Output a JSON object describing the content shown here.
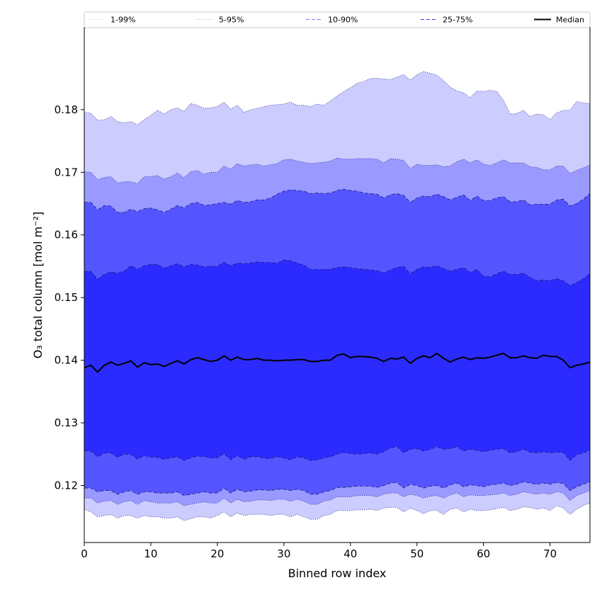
{
  "chart_data": {
    "type": "area",
    "title": "",
    "xlabel": "Binned row index",
    "ylabel": "O₃ total column [mol m⁻²]",
    "xlim": [
      0,
      76
    ],
    "ylim": [
      0.1109,
      0.1931
    ],
    "x_ticks": [
      0,
      10,
      20,
      30,
      40,
      50,
      60,
      70
    ],
    "y_ticks": [
      0.12,
      0.13,
      0.14,
      0.15,
      0.16,
      0.17,
      0.18
    ],
    "x_tick_labels": [
      "0",
      "10",
      "20",
      "30",
      "40",
      "50",
      "60",
      "70"
    ],
    "y_tick_labels": [
      "0.12",
      "0.13",
      "0.14",
      "0.15",
      "0.16",
      "0.17",
      "0.18"
    ],
    "grid": false,
    "legend_position": "top, spanning full width in one row",
    "x": [
      0,
      1,
      2,
      3,
      4,
      5,
      6,
      7,
      8,
      9,
      10,
      11,
      12,
      13,
      14,
      15,
      16,
      17,
      18,
      19,
      20,
      21,
      22,
      23,
      24,
      25,
      26,
      27,
      28,
      29,
      30,
      31,
      32,
      33,
      34,
      35,
      36,
      37,
      38,
      39,
      40,
      41,
      42,
      43,
      44,
      45,
      46,
      47,
      48,
      49,
      50,
      51,
      52,
      53,
      54,
      55,
      56,
      57,
      58,
      59,
      60,
      61,
      62,
      63,
      64,
      65,
      66,
      67,
      68,
      69,
      70,
      71,
      72,
      73,
      74,
      75,
      76
    ],
    "bands": [
      {
        "name": "1-99%",
        "color": "#ccccff",
        "line_style": "dotted",
        "lower": [
          0.1162,
          0.1158,
          0.115,
          0.1152,
          0.1154,
          0.1148,
          0.1152,
          0.1152,
          0.1148,
          0.1152,
          0.115,
          0.115,
          0.1148,
          0.1148,
          0.115,
          0.1144,
          0.1147,
          0.115,
          0.115,
          0.1148,
          0.1152,
          0.1158,
          0.115,
          0.1156,
          0.1152,
          0.1154,
          0.1154,
          0.1154,
          0.1152,
          0.1154,
          0.1154,
          0.115,
          0.1154,
          0.115,
          0.1146,
          0.1146,
          0.1152,
          0.1154,
          0.116,
          0.116,
          0.116,
          0.1161,
          0.1161,
          0.1162,
          0.116,
          0.1164,
          0.1165,
          0.1165,
          0.1158,
          0.1164,
          0.116,
          0.1155,
          0.116,
          0.116,
          0.1154,
          0.1162,
          0.1164,
          0.1158,
          0.1162,
          0.116,
          0.116,
          0.1161,
          0.1163,
          0.1165,
          0.116,
          0.1162,
          0.1166,
          0.1165,
          0.1162,
          0.1164,
          0.116,
          0.1168,
          0.1164,
          0.1154,
          0.1162,
          0.1168,
          0.1172
        ],
        "upper": [
          0.1796,
          0.1794,
          0.1783,
          0.1784,
          0.1789,
          0.1781,
          0.1779,
          0.1781,
          0.1776,
          0.1784,
          0.1791,
          0.1799,
          0.1793,
          0.18,
          0.1803,
          0.1797,
          0.181,
          0.1807,
          0.1802,
          0.1803,
          0.1805,
          0.1812,
          0.1801,
          0.1807,
          0.1796,
          0.18,
          0.1802,
          0.1805,
          0.1807,
          0.1808,
          0.1809,
          0.1812,
          0.1807,
          0.1807,
          0.1805,
          0.1809,
          0.1807,
          0.1814,
          0.1822,
          0.1829,
          0.1835,
          0.1842,
          0.1845,
          0.185,
          0.185,
          0.1849,
          0.1848,
          0.1852,
          0.1856,
          0.1847,
          0.1856,
          0.1861,
          0.1858,
          0.1855,
          0.1846,
          0.1836,
          0.183,
          0.1827,
          0.1819,
          0.183,
          0.1829,
          0.1831,
          0.1829,
          0.1815,
          0.1793,
          0.1794,
          0.1799,
          0.1789,
          0.1793,
          0.1792,
          0.1784,
          0.1795,
          0.1799,
          0.1799,
          0.1813,
          0.1811,
          0.181
        ]
      },
      {
        "name": "5-95%",
        "color": "#9999ff",
        "line_style": "dotted",
        "lower": [
          0.118,
          0.118,
          0.1172,
          0.1175,
          0.1176,
          0.117,
          0.1174,
          0.1176,
          0.117,
          0.1176,
          0.1174,
          0.1172,
          0.1172,
          0.1172,
          0.1174,
          0.1168,
          0.117,
          0.1172,
          0.1174,
          0.1172,
          0.1172,
          0.118,
          0.1172,
          0.1178,
          0.1174,
          0.1175,
          0.1177,
          0.1177,
          0.1176,
          0.1178,
          0.1178,
          0.1175,
          0.1178,
          0.1175,
          0.117,
          0.117,
          0.1175,
          0.1177,
          0.1182,
          0.1182,
          0.1182,
          0.1184,
          0.1184,
          0.1184,
          0.1182,
          0.1186,
          0.1188,
          0.1188,
          0.1182,
          0.1186,
          0.1184,
          0.118,
          0.1183,
          0.1184,
          0.118,
          0.1185,
          0.1188,
          0.1182,
          0.1185,
          0.1184,
          0.1184,
          0.1185,
          0.1186,
          0.1188,
          0.1184,
          0.1186,
          0.119,
          0.1188,
          0.1186,
          0.1188,
          0.1186,
          0.119,
          0.1188,
          0.1176,
          0.1184,
          0.1188,
          0.1192
        ],
        "upper": [
          0.1701,
          0.17,
          0.1688,
          0.1692,
          0.1693,
          0.1683,
          0.1685,
          0.1685,
          0.1682,
          0.1693,
          0.1693,
          0.1695,
          0.1689,
          0.1693,
          0.1699,
          0.1691,
          0.1701,
          0.1703,
          0.1697,
          0.17,
          0.17,
          0.171,
          0.1705,
          0.1714,
          0.171,
          0.1712,
          0.1713,
          0.171,
          0.1712,
          0.1714,
          0.172,
          0.1721,
          0.1718,
          0.1716,
          0.1714,
          0.1715,
          0.1716,
          0.1718,
          0.1723,
          0.1721,
          0.1721,
          0.1722,
          0.1722,
          0.1722,
          0.1721,
          0.1715,
          0.1722,
          0.1721,
          0.1719,
          0.1706,
          0.1713,
          0.1711,
          0.1711,
          0.1712,
          0.1709,
          0.171,
          0.1717,
          0.1721,
          0.1715,
          0.172,
          0.1713,
          0.1711,
          0.1715,
          0.172,
          0.1715,
          0.1715,
          0.1715,
          0.1709,
          0.1708,
          0.1704,
          0.1704,
          0.171,
          0.171,
          0.1698,
          0.1703,
          0.1707,
          0.1712
        ]
      },
      {
        "name": "10-90%",
        "color": "#5555ff",
        "line_style": "dashed",
        "lower": [
          0.1196,
          0.1196,
          0.119,
          0.1192,
          0.1192,
          0.1186,
          0.119,
          0.1192,
          0.1186,
          0.119,
          0.119,
          0.1188,
          0.1188,
          0.1188,
          0.119,
          0.1184,
          0.1186,
          0.1188,
          0.119,
          0.1188,
          0.1188,
          0.1196,
          0.1188,
          0.1194,
          0.119,
          0.1191,
          0.1193,
          0.1193,
          0.1192,
          0.1194,
          0.1194,
          0.1192,
          0.1194,
          0.1192,
          0.1186,
          0.1186,
          0.119,
          0.1192,
          0.1197,
          0.1197,
          0.1198,
          0.1199,
          0.1199,
          0.1199,
          0.1197,
          0.12,
          0.1204,
          0.1205,
          0.1196,
          0.1202,
          0.12,
          0.1196,
          0.1199,
          0.12,
          0.1196,
          0.1201,
          0.1204,
          0.1198,
          0.1201,
          0.12,
          0.1198,
          0.1201,
          0.1202,
          0.1204,
          0.12,
          0.1202,
          0.1206,
          0.1204,
          0.1202,
          0.1204,
          0.1202,
          0.1205,
          0.1203,
          0.1192,
          0.1198,
          0.1202,
          0.1206
        ],
        "upper": [
          0.1652,
          0.1652,
          0.164,
          0.1647,
          0.1646,
          0.1636,
          0.1636,
          0.1641,
          0.1637,
          0.1642,
          0.1643,
          0.164,
          0.1636,
          0.1641,
          0.1647,
          0.1643,
          0.165,
          0.1652,
          0.1647,
          0.1648,
          0.165,
          0.1652,
          0.1649,
          0.1655,
          0.1652,
          0.1653,
          0.1656,
          0.1656,
          0.1659,
          0.1665,
          0.167,
          0.1672,
          0.1671,
          0.167,
          0.1666,
          0.1667,
          0.1666,
          0.1667,
          0.1671,
          0.1673,
          0.1671,
          0.167,
          0.1667,
          0.1666,
          0.1665,
          0.1659,
          0.1664,
          0.1666,
          0.1663,
          0.1652,
          0.1659,
          0.1662,
          0.1661,
          0.1665,
          0.1661,
          0.1656,
          0.166,
          0.1664,
          0.1655,
          0.1662,
          0.1655,
          0.1655,
          0.1659,
          0.1661,
          0.1653,
          0.1653,
          0.1656,
          0.1648,
          0.1649,
          0.1649,
          0.1649,
          0.1656,
          0.1657,
          0.1646,
          0.165,
          0.1657,
          0.1666
        ]
      },
      {
        "name": "25-75%",
        "color": "#2b2bff",
        "line_style": "dashed",
        "lower": [
          0.1255,
          0.1255,
          0.1246,
          0.1252,
          0.1252,
          0.1245,
          0.125,
          0.125,
          0.1242,
          0.1248,
          0.1245,
          0.1245,
          0.1242,
          0.1244,
          0.1246,
          0.124,
          0.1244,
          0.1247,
          0.1246,
          0.1244,
          0.1244,
          0.1251,
          0.1241,
          0.1248,
          0.1242,
          0.1246,
          0.1246,
          0.1244,
          0.1243,
          0.1246,
          0.1244,
          0.1241,
          0.1246,
          0.1244,
          0.124,
          0.1241,
          0.1244,
          0.1246,
          0.125,
          0.1253,
          0.1251,
          0.125,
          0.1251,
          0.1252,
          0.125,
          0.1254,
          0.126,
          0.1262,
          0.1252,
          0.1258,
          0.1259,
          0.1255,
          0.1258,
          0.1262,
          0.1258,
          0.1259,
          0.1262,
          0.1255,
          0.1258,
          0.1256,
          0.1254,
          0.1256,
          0.1258,
          0.1259,
          0.1252,
          0.1254,
          0.1258,
          0.1253,
          0.1252,
          0.1254,
          0.1252,
          0.1253,
          0.1253,
          0.124,
          0.1249,
          0.1252,
          0.1257
        ],
        "upper": [
          0.1541,
          0.1542,
          0.1529,
          0.1537,
          0.1541,
          0.1539,
          0.1542,
          0.1551,
          0.1545,
          0.1551,
          0.1553,
          0.1553,
          0.1547,
          0.1551,
          0.1554,
          0.1549,
          0.1553,
          0.1552,
          0.1549,
          0.155,
          0.155,
          0.1556,
          0.1551,
          0.1555,
          0.1554,
          0.1555,
          0.1557,
          0.1556,
          0.1556,
          0.1555,
          0.156,
          0.1559,
          0.1555,
          0.1552,
          0.1545,
          0.1545,
          0.1545,
          0.1545,
          0.1548,
          0.1549,
          0.1548,
          0.1546,
          0.1545,
          0.1544,
          0.1543,
          0.1539,
          0.1544,
          0.1548,
          0.155,
          0.1538,
          0.1545,
          0.1549,
          0.1548,
          0.1551,
          0.1546,
          0.1542,
          0.1545,
          0.1548,
          0.154,
          0.1545,
          0.1534,
          0.1533,
          0.1538,
          0.1542,
          0.1537,
          0.1537,
          0.1539,
          0.1532,
          0.1527,
          0.1528,
          0.1527,
          0.153,
          0.1527,
          0.1519,
          0.1524,
          0.153,
          0.1538
        ]
      }
    ],
    "series": [
      {
        "name": "Median",
        "color": "#000000",
        "line_style": "solid",
        "values": [
          0.1388,
          0.1392,
          0.1381,
          0.1392,
          0.1397,
          0.1392,
          0.1395,
          0.1399,
          0.1389,
          0.1396,
          0.1393,
          0.1394,
          0.139,
          0.1395,
          0.1399,
          0.1394,
          0.1401,
          0.1404,
          0.1401,
          0.1398,
          0.14,
          0.1407,
          0.14,
          0.1405,
          0.1401,
          0.1401,
          0.1403,
          0.14,
          0.14,
          0.1399,
          0.14,
          0.14,
          0.1401,
          0.1401,
          0.1398,
          0.1398,
          0.14,
          0.14,
          0.1408,
          0.141,
          0.1404,
          0.1406,
          0.1406,
          0.1405,
          0.1403,
          0.1398,
          0.1403,
          0.1402,
          0.1405,
          0.1395,
          0.1403,
          0.1407,
          0.1404,
          0.1411,
          0.1403,
          0.1397,
          0.1402,
          0.1405,
          0.1401,
          0.1404,
          0.1403,
          0.1405,
          0.1408,
          0.1411,
          0.1404,
          0.1404,
          0.1407,
          0.1404,
          0.1403,
          0.1408,
          0.1406,
          0.1406,
          0.14,
          0.1388,
          0.1392,
          0.1394,
          0.1397
        ]
      }
    ]
  }
}
